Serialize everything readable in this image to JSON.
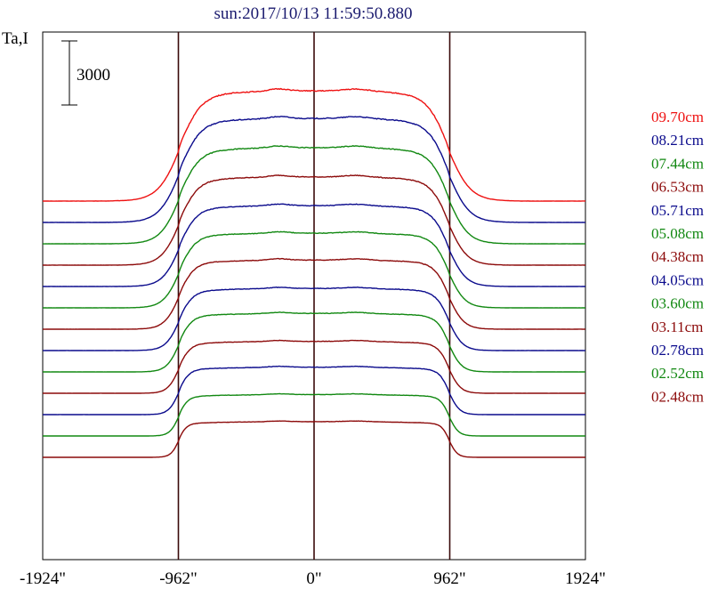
{
  "chart_data": {
    "type": "line",
    "title": "sun:2017/10/13 11:59:50.880",
    "ylabel": "Ta,I",
    "scale_bar_label": "3000",
    "scale_bar_value": 3000,
    "x_ticks": [
      {
        "value": -1924,
        "label": "-1924\""
      },
      {
        "value": -962,
        "label": "-962\""
      },
      {
        "value": 0,
        "label": "0\""
      },
      {
        "value": 962,
        "label": "962\""
      },
      {
        "value": 1924,
        "label": "1924\""
      }
    ],
    "vlines": [
      -962,
      0,
      962
    ],
    "xlim": [
      -1924,
      1924
    ],
    "series": [
      {
        "name": "09.70cm",
        "color": "#ee1111",
        "baseline": 0,
        "amplitude": 5160
      },
      {
        "name": "08.21cm",
        "color": "#0a0a8c",
        "baseline": -1000,
        "amplitude": 4870
      },
      {
        "name": "07.44cm",
        "color": "#118811",
        "baseline": -2000,
        "amplitude": 4500
      },
      {
        "name": "06.53cm",
        "color": "#8c0a0a",
        "baseline": -3000,
        "amplitude": 4130
      },
      {
        "name": "05.71cm",
        "color": "#0a0a8c",
        "baseline": -4000,
        "amplitude": 3790
      },
      {
        "name": "05.08cm",
        "color": "#118811",
        "baseline": -5000,
        "amplitude": 3500
      },
      {
        "name": "04.38cm",
        "color": "#8c0a0a",
        "baseline": -6000,
        "amplitude": 3240
      },
      {
        "name": "04.05cm",
        "color": "#0a0a8c",
        "baseline": -7000,
        "amplitude": 2910
      },
      {
        "name": "03.60cm",
        "color": "#118811",
        "baseline": -8000,
        "amplitude": 2740
      },
      {
        "name": "03.11cm",
        "color": "#8c0a0a",
        "baseline": -9000,
        "amplitude": 2430
      },
      {
        "name": "02.78cm",
        "color": "#0a0a8c",
        "baseline": -10000,
        "amplitude": 2220
      },
      {
        "name": "02.52cm",
        "color": "#118811",
        "baseline": -11000,
        "amplitude": 1940
      },
      {
        "name": "02.48cm",
        "color": "#8c0a0a",
        "baseline": -12000,
        "amplitude": 1670
      }
    ]
  }
}
